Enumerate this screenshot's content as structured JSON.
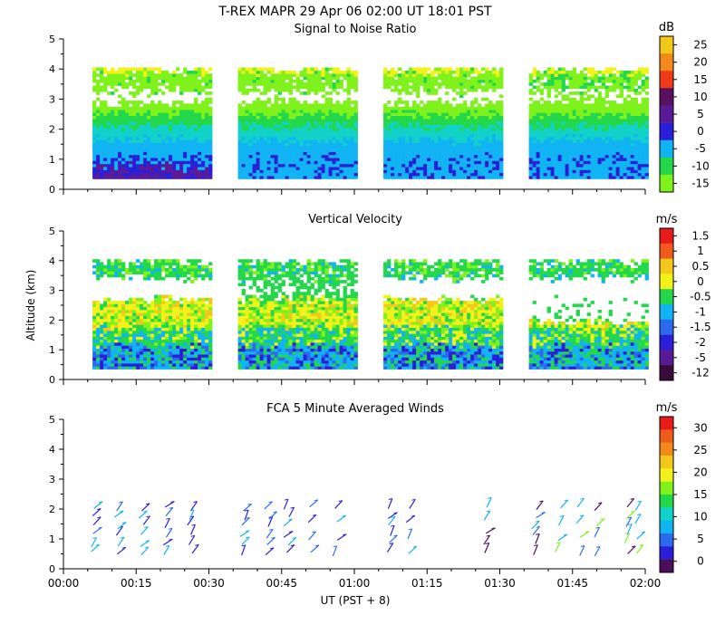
{
  "header": {
    "title": "T-REX  MAPR 29 Apr 06  02:00 UT  18:01  PST"
  },
  "x_axis": {
    "label": "UT  (PST + 8)",
    "ticks": [
      "00:00",
      "00:15",
      "00:30",
      "00:45",
      "01:00",
      "01:15",
      "01:30",
      "01:45",
      "02:00"
    ]
  },
  "palette": [
    "#4a0f5a",
    "#5a1a95",
    "#2a1ed8",
    "#0a5af0",
    "#10b4f2",
    "#10d2c8",
    "#22d84a",
    "#7ef21a",
    "#f2f21a",
    "#f2c81a",
    "#f28a1a",
    "#f05a1a",
    "#e81a1a"
  ],
  "chart_data": [
    {
      "type": "heatmap",
      "title": "Signal to Noise Ratio",
      "ylabel": "",
      "ylim": [
        0,
        5
      ],
      "yticks": [
        "0",
        "1",
        "2",
        "3",
        "4",
        "5"
      ],
      "xlim_minutes": [
        0,
        120
      ],
      "colorbar": {
        "unit": "dB",
        "labels": [
          "25",
          "20",
          "15",
          "10",
          "5",
          "0",
          "-5",
          "-10",
          "-15"
        ],
        "colors": [
          "#f2c81a",
          "#f28a1a",
          "#f03a1a",
          "#5a1060",
          "#5a1a95",
          "#2a1ed8",
          "#10b4f2",
          "#22d84a",
          "#7ef21a"
        ]
      },
      "data_segments_minutes": [
        [
          6,
          30
        ],
        [
          36,
          60
        ],
        [
          66,
          90
        ],
        [
          96,
          120
        ]
      ]
    },
    {
      "type": "heatmap",
      "title": "Vertical Velocity",
      "ylabel": "Altitude (km)",
      "ylim": [
        0,
        5
      ],
      "yticks": [
        "0",
        "1",
        "2",
        "3",
        "4",
        "5"
      ],
      "xlim_minutes": [
        0,
        120
      ],
      "colorbar": {
        "unit": "m/s",
        "labels": [
          "1.5",
          "1",
          "0.5",
          "0",
          "-0.5",
          "-1",
          "-1.5",
          "-2",
          "-5",
          "-12"
        ],
        "colors": [
          "#e81a1a",
          "#f05a1a",
          "#f2c81a",
          "#f2f21a",
          "#22d84a",
          "#10b4f2",
          "#2a6af0",
          "#2a1ed8",
          "#5a1a95",
          "#3a0a3a"
        ]
      },
      "data_segments_minutes": [
        [
          6,
          30
        ],
        [
          36,
          60
        ],
        [
          66,
          90
        ],
        [
          96,
          120
        ]
      ]
    },
    {
      "type": "scatter",
      "title": "FCA 5 Minute Averaged Winds",
      "ylabel": "",
      "ylim": [
        0,
        5
      ],
      "yticks": [
        "0",
        "1",
        "2",
        "3",
        "4",
        "5"
      ],
      "xlim_minutes": [
        0,
        120
      ],
      "colorbar": {
        "unit": "m/s",
        "labels": [
          "30",
          "25",
          "20",
          "15",
          "10",
          "5",
          "0"
        ],
        "colors": [
          "#e81a1a",
          "#f05a1a",
          "#f28a1a",
          "#f2c81a",
          "#f2f21a",
          "#7ef21a",
          "#22d84a",
          "#10d2c8",
          "#10b4f2",
          "#2a6af0",
          "#2a1ed8",
          "#4a0f5a"
        ]
      },
      "barb_times_minutes": [
        6,
        11,
        16,
        21,
        26,
        37,
        42,
        46,
        51,
        56,
        67,
        71,
        87,
        97,
        102,
        106,
        110,
        116,
        118
      ],
      "barb_altitude_range_km": [
        0.5,
        2.0
      ]
    }
  ]
}
